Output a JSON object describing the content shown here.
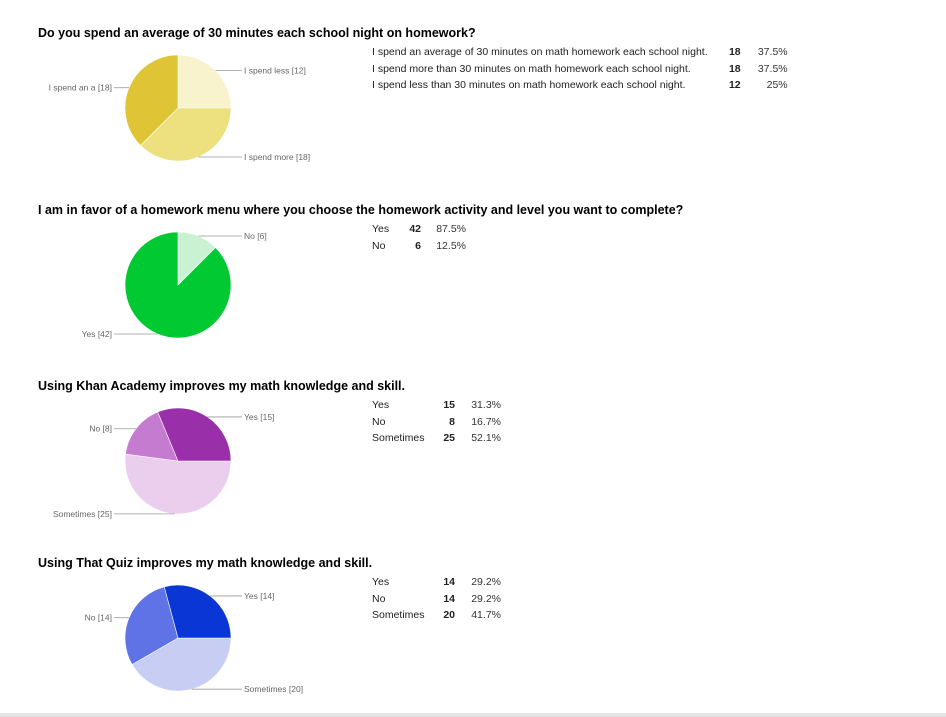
{
  "chart_data": [
    {
      "type": "pie",
      "title": "Do you spend an average of 30 minutes each school night on homework?",
      "categories": [
        "I spend an average of 30 minutes on math homework each school night.",
        "I spend more than 30 minutes on math homework each school night.",
        "I spend less than 30 minutes on math homework each school night."
      ],
      "values": [
        18,
        18,
        12
      ],
      "percents": [
        "37.5%",
        "37.5%",
        "25%"
      ],
      "slice_labels": [
        "I spend an a [18]",
        "I spend more [18]",
        "I spend less [12]"
      ],
      "colors": [
        "#dfc435",
        "#ece07f",
        "#f8f3cc"
      ]
    },
    {
      "type": "pie",
      "title": "I am in favor of a homework menu where you choose the homework activity and level you want to complete?",
      "categories": [
        "Yes",
        "No"
      ],
      "values": [
        42,
        6
      ],
      "percents": [
        "87.5%",
        "12.5%"
      ],
      "slice_labels": [
        "Yes [42]",
        "No [6]"
      ],
      "colors": [
        "#00c932",
        "#c9f2d2"
      ]
    },
    {
      "type": "pie",
      "title": "Using Khan Academy improves my math knowledge and skill.",
      "categories": [
        "Yes",
        "No",
        "Sometimes"
      ],
      "values": [
        15,
        8,
        25
      ],
      "percents": [
        "31.3%",
        "16.7%",
        "52.1%"
      ],
      "slice_labels": [
        "Yes [15]",
        "No [8]",
        "Sometimes [25]"
      ],
      "colors": [
        "#9a2faa",
        "#c57bd0",
        "#ebcdee"
      ]
    },
    {
      "type": "pie",
      "title": "Using That Quiz improves my math knowledge and skill.",
      "categories": [
        "Yes",
        "No",
        "Sometimes"
      ],
      "values": [
        14,
        14,
        20
      ],
      "percents": [
        "29.2%",
        "29.2%",
        "41.7%"
      ],
      "slice_labels": [
        "Yes [14]",
        "No [14]",
        "Sometimes [20]"
      ],
      "colors": [
        "#0a36d6",
        "#5f73e6",
        "#c8cdf4"
      ]
    }
  ]
}
